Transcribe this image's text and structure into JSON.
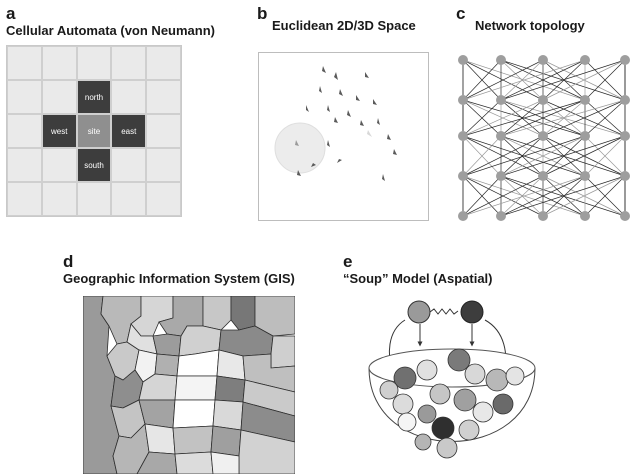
{
  "panels": {
    "a": {
      "letter": "a",
      "title": "Cellular Automata (von Neumann)",
      "cells": {
        "north": "north",
        "west": "west",
        "site": "site",
        "east": "east",
        "south": "south"
      }
    },
    "b": {
      "letter": "b",
      "title": "Euclidean 2D/3D Space"
    },
    "c": {
      "letter": "c",
      "title": "Network topology"
    },
    "d": {
      "letter": "d",
      "title": "Geographic Information System (GIS)"
    },
    "e": {
      "letter": "e",
      "title": "“Soup” Model (Aspatial)"
    }
  },
  "colors": {
    "dark": "#3d3d3d",
    "mid": "#8f8f8f",
    "light": "#eaeaea",
    "grid": "#cfcfcf"
  }
}
